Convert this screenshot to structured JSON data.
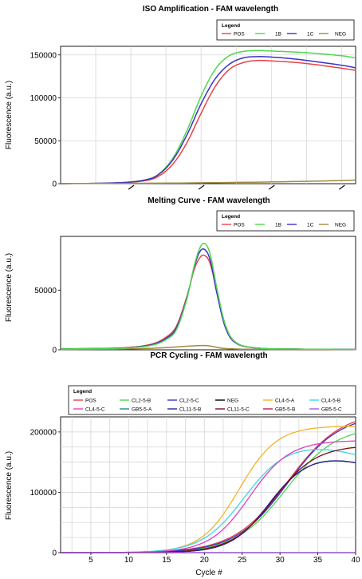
{
  "chart_data": [
    {
      "type": "line",
      "title": "ISO Amplification - FAM wavelength",
      "xlabel": "",
      "ylabel": "Fluorescence (a.u.)",
      "xlim": [
        0,
        42
      ],
      "ylim": [
        0,
        160000
      ],
      "yticks": [
        0,
        50000,
        100000,
        150000
      ],
      "xtick_labels_visible": false,
      "grid": true,
      "legend": {
        "title": "Legend",
        "placement": "top-right"
      },
      "series": [
        {
          "name": "POS",
          "color": "#e8434a",
          "x": [
            0,
            8,
            12,
            14,
            16,
            18,
            20,
            22,
            24,
            26,
            28,
            30,
            33,
            36,
            40,
            42
          ],
          "y": [
            0,
            900,
            3500,
            9000,
            23000,
            48000,
            82000,
            113000,
            133000,
            141000,
            143500,
            143000,
            141500,
            139000,
            134500,
            132000
          ]
        },
        {
          "name": "1B",
          "color": "#4fd64f",
          "x": [
            0,
            8,
            12,
            14,
            16,
            18,
            20,
            22,
            24,
            26,
            28,
            30,
            33,
            36,
            40,
            42
          ],
          "y": [
            0,
            1000,
            4500,
            11500,
            30000,
            62000,
            102000,
            133000,
            149000,
            154000,
            155000,
            154500,
            153500,
            152000,
            149000,
            146500
          ]
        },
        {
          "name": "1C",
          "color": "#3b33c4",
          "x": [
            0,
            8,
            12,
            14,
            16,
            18,
            20,
            22,
            24,
            26,
            28,
            30,
            33,
            36,
            40,
            42
          ],
          "y": [
            0,
            1000,
            4200,
            11000,
            28000,
            57000,
            93000,
            122000,
            139000,
            146500,
            148000,
            147500,
            145500,
            142500,
            138000,
            135000
          ]
        },
        {
          "name": "NEG",
          "color": "#a08a3c",
          "x": [
            0,
            10,
            20,
            30,
            38,
            42
          ],
          "y": [
            200,
            400,
            1000,
            2000,
            3300,
            4200
          ]
        }
      ]
    },
    {
      "type": "line",
      "title": "Melting Curve - FAM wavelength",
      "xlabel": "",
      "ylabel": "Fluorescence (a.u.)",
      "xlim": [
        0,
        42
      ],
      "ylim": [
        0,
        95000
      ],
      "yticks": [
        0,
        50000
      ],
      "grid": false,
      "legend": {
        "title": "Legend",
        "placement": "top-right"
      },
      "series": [
        {
          "name": "POS",
          "color": "#e8434a",
          "x": [
            0,
            6,
            10,
            13,
            15,
            16.5,
            18,
            19,
            19.8,
            20.5,
            21.3,
            22.3,
            23.5,
            25,
            28,
            34,
            42
          ],
          "y": [
            900,
            1200,
            2200,
            4800,
            10500,
            20000,
            45000,
            67000,
            77000,
            79000,
            72000,
            48000,
            20000,
            6000,
            1500,
            600,
            400
          ]
        },
        {
          "name": "1B",
          "color": "#4fd64f",
          "x": [
            0,
            6,
            10,
            13,
            15,
            16.5,
            18,
            19,
            19.8,
            20.5,
            21.3,
            22.3,
            23.5,
            25,
            28,
            34,
            42
          ],
          "y": [
            700,
            1000,
            1800,
            3800,
            8500,
            17000,
            43000,
            70000,
            85000,
            89000,
            80000,
            50000,
            20000,
            6000,
            1500,
            600,
            400
          ]
        },
        {
          "name": "1C",
          "color": "#3b33c4",
          "x": [
            0,
            6,
            10,
            13,
            15,
            16.5,
            18,
            19,
            19.8,
            20.5,
            21.3,
            22.3,
            23.5,
            25,
            28,
            34,
            42
          ],
          "y": [
            800,
            1100,
            2000,
            4300,
            9500,
            18500,
            44000,
            69000,
            82000,
            84000,
            75000,
            46000,
            18000,
            5500,
            1400,
            600,
            400
          ]
        },
        {
          "name": "NEG",
          "color": "#a08a3c",
          "x": [
            0,
            8,
            13,
            16,
            18,
            20,
            21,
            22,
            23,
            25,
            28,
            42
          ],
          "y": [
            300,
            600,
            1300,
            2200,
            3000,
            3600,
            3400,
            2400,
            1300,
            700,
            400,
            300
          ]
        }
      ]
    },
    {
      "type": "line",
      "title": "PCR Cycling - FAM wavelength",
      "xlabel": "Cycle #",
      "ylabel": "Fluorescence (a.u.)",
      "xlim": [
        1,
        40
      ],
      "ylim": [
        0,
        225000
      ],
      "xticks": [
        5,
        10,
        15,
        20,
        25,
        30,
        35,
        40
      ],
      "yticks": [
        0,
        100000,
        200000
      ],
      "grid": true,
      "legend": {
        "title": "Legend",
        "placement": "top"
      },
      "series": [
        {
          "name": "POS",
          "color": "#e8434a",
          "type": "logistic",
          "L": 235000,
          "k": 0.28,
          "x0": 31
        },
        {
          "name": "CL2-5-B",
          "color": "#4fd64f",
          "type": "logistic",
          "L": 210000,
          "k": 0.3,
          "x0": 30.8
        },
        {
          "name": "CL2-5-C",
          "color": "#3b33c4",
          "type": "logistic",
          "L": 230000,
          "k": 0.29,
          "x0": 31
        },
        {
          "name": "NEG",
          "color": "#000000",
          "type": "logistic",
          "L": 160000,
          "k": 0.4,
          "x0": 28.5,
          "decay": 900
        },
        {
          "name": "CL4-5-A",
          "color": "#f0b429",
          "type": "logistic",
          "L": 210000,
          "k": 0.4,
          "x0": 24.6,
          "decay": 0
        },
        {
          "name": "CL4-5-B",
          "color": "#3ad7e6",
          "type": "logistic",
          "L": 180000,
          "k": 0.36,
          "x0": 25.2,
          "decay": 700
        },
        {
          "name": "CL4-5-C",
          "color": "#e040c8",
          "type": "logistic",
          "L": 186000,
          "k": 0.38,
          "x0": 26.0
        },
        {
          "name": "GB5-5-A",
          "color": "#1e8c8c",
          "type": "flat",
          "value": 0
        },
        {
          "name": "CL11-5-B",
          "color": "#262699",
          "type": "logistic",
          "L": 160000,
          "k": 0.4,
          "x0": 28.5,
          "decay": 900
        },
        {
          "name": "CL11-5-C",
          "color": "#7a0f1f",
          "type": "logistic",
          "L": 178000,
          "k": 0.36,
          "x0": 29.2
        },
        {
          "name": "GB5-5-B",
          "color": "#c2185b",
          "type": "flat",
          "value": 0
        },
        {
          "name": "GB5-5-C",
          "color": "#9c5ee8",
          "type": "flat",
          "value": 0
        }
      ]
    }
  ]
}
